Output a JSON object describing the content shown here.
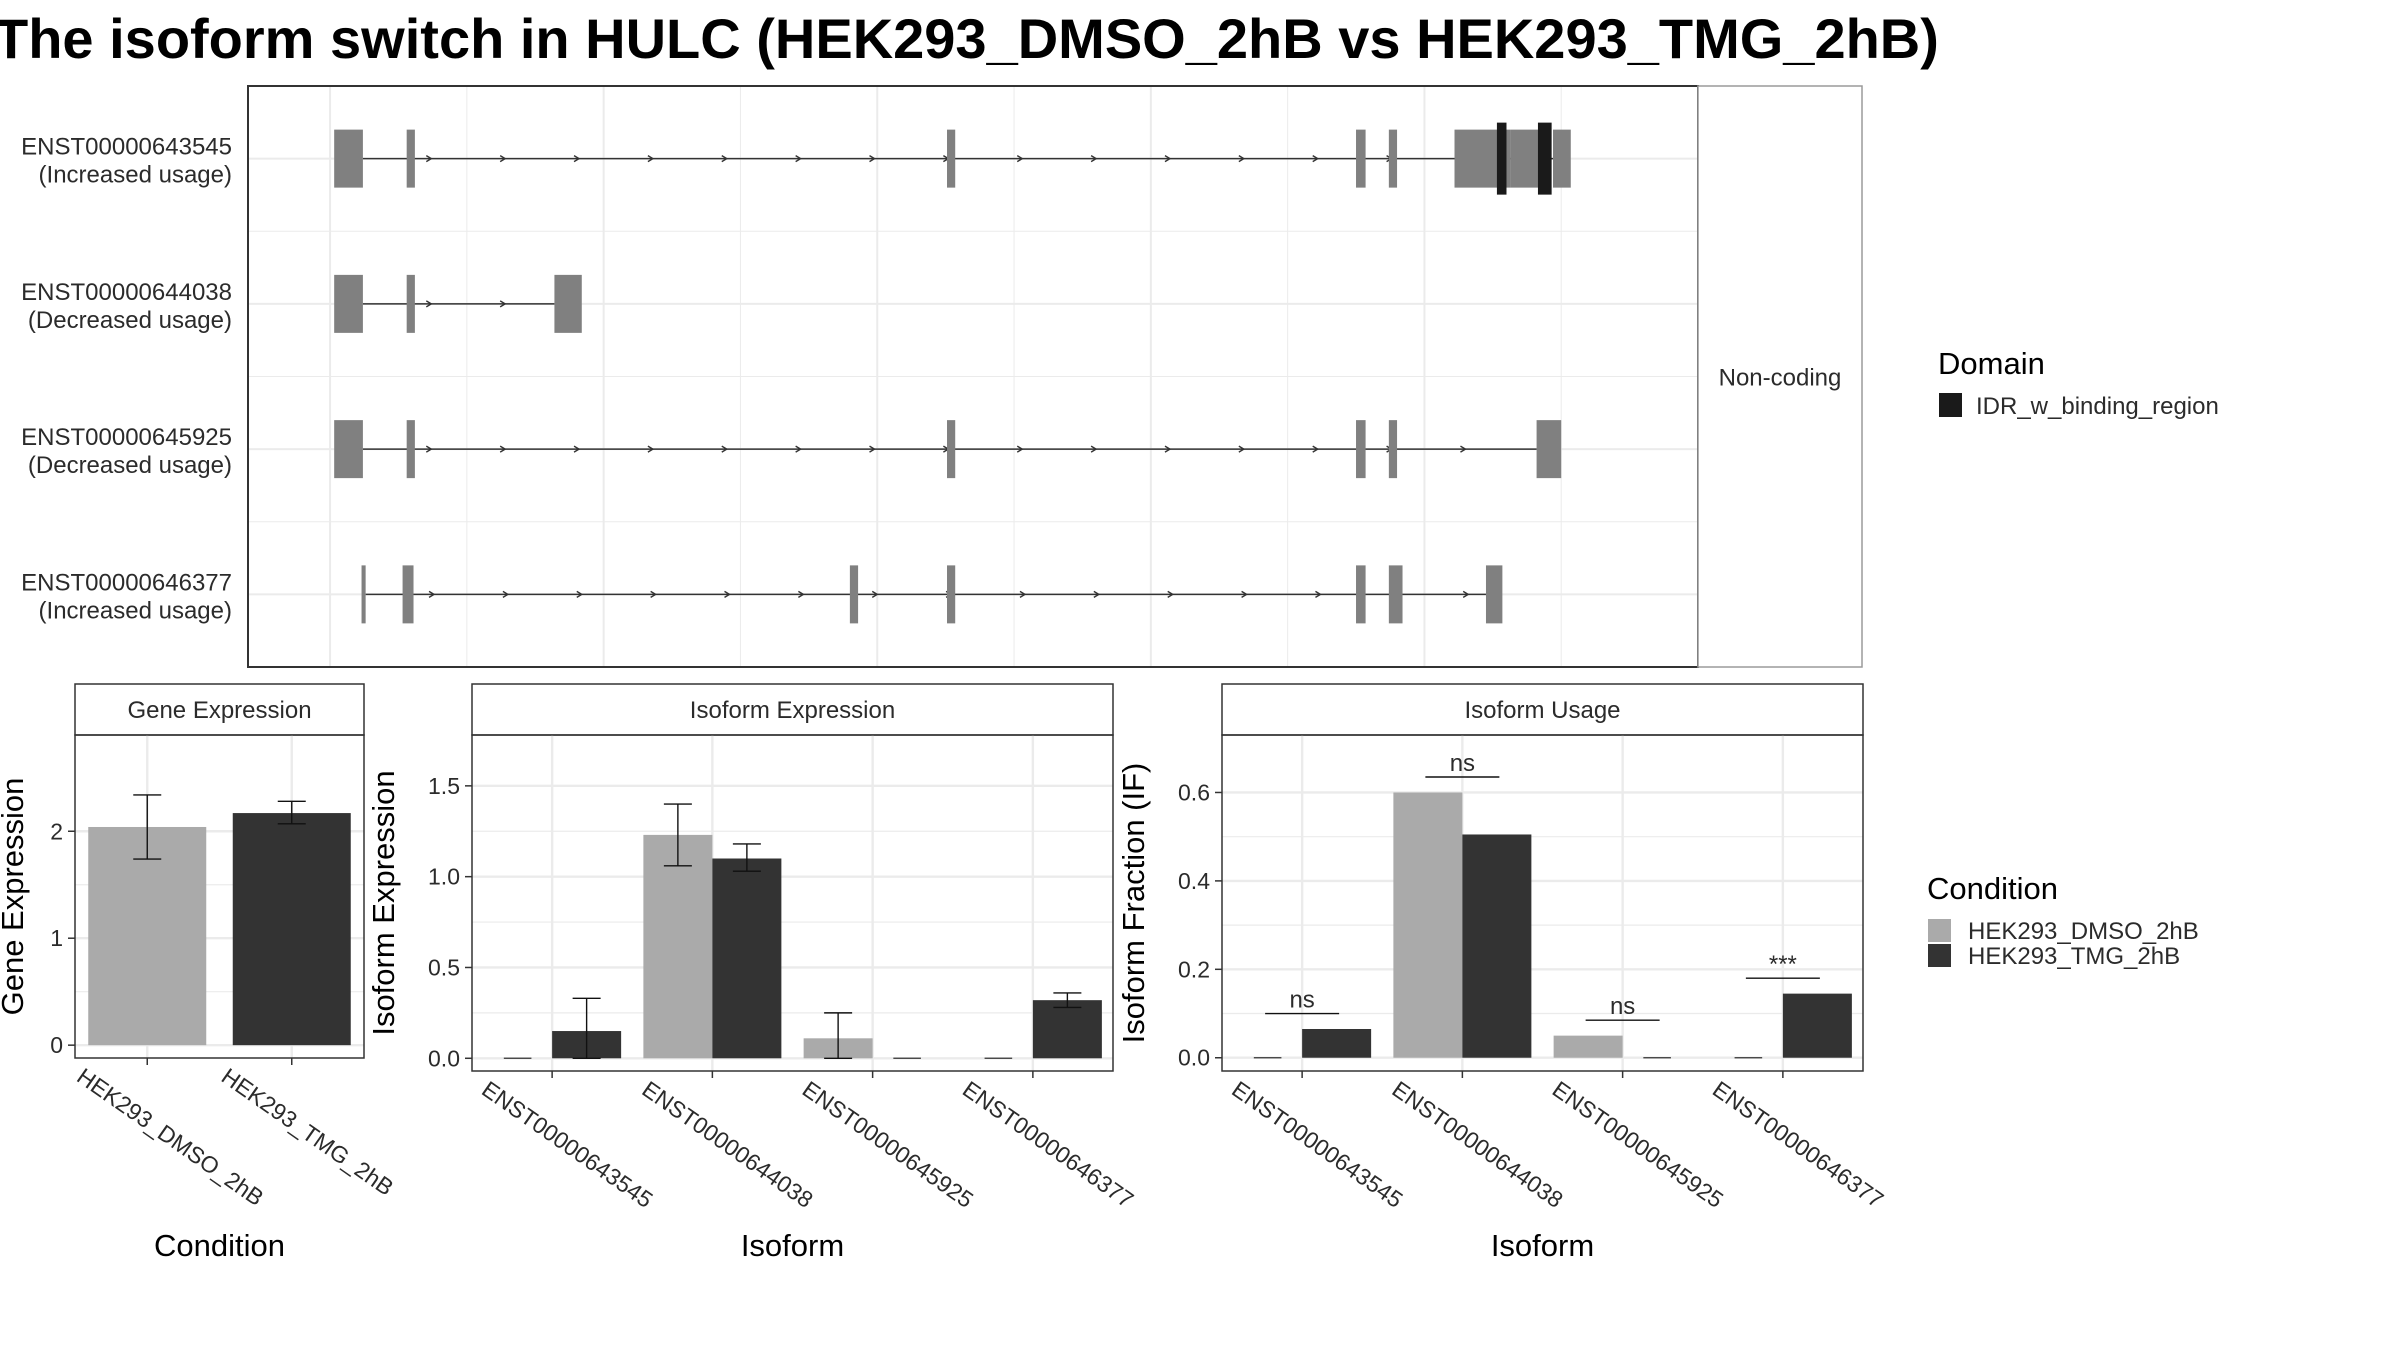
{
  "title": "The isoform switch in HULC (HEK293_DMSO_2hB vs HEK293_TMG_2hB)",
  "colors": {
    "dmso": "#aaaaaa",
    "tmg": "#333333",
    "exon": "#808080",
    "domain": "#1a1a1a",
    "panel_border": "#333333",
    "grid": "#ebebeb",
    "strip_bg": "#ffffff"
  },
  "transcripts": {
    "facet_label": "Non-coding",
    "rows": [
      {
        "id": "ENST00000643545",
        "usage": "(Increased usage)",
        "exons": [
          [
            3,
            24
          ],
          [
            56,
            62
          ],
          [
            451,
            457
          ],
          [
            750,
            757
          ],
          [
            774,
            780
          ],
          [
            822,
            863
          ],
          [
            863,
            886
          ],
          [
            894,
            907
          ]
        ],
        "domains": [
          [
            853,
            860
          ],
          [
            883,
            893
          ]
        ],
        "intron": [
          24,
          894
        ]
      },
      {
        "id": "ENST00000644038",
        "usage": "(Decreased usage)",
        "exons": [
          [
            3,
            24
          ],
          [
            56,
            62
          ],
          [
            164,
            184
          ]
        ],
        "domains": [],
        "intron": [
          24,
          164
        ]
      },
      {
        "id": "ENST00000645925",
        "usage": "(Decreased usage)",
        "exons": [
          [
            3,
            24
          ],
          [
            56,
            62
          ],
          [
            451,
            457
          ],
          [
            750,
            757
          ],
          [
            774,
            780
          ],
          [
            882,
            900
          ]
        ],
        "domains": [],
        "intron": [
          24,
          882
        ]
      },
      {
        "id": "ENST00000646377",
        "usage": "(Increased usage)",
        "exons": [
          [
            23,
            26
          ],
          [
            53,
            61
          ],
          [
            380,
            386
          ],
          [
            451,
            457
          ],
          [
            750,
            757
          ],
          [
            774,
            784
          ],
          [
            845,
            857
          ]
        ],
        "domains": [],
        "intron": [
          26,
          845
        ]
      }
    ]
  },
  "legend_domain": {
    "title": "Domain",
    "items": [
      "IDR_w_binding_region"
    ]
  },
  "legend_condition": {
    "title": "Condition",
    "items": [
      "HEK293_DMSO_2hB",
      "HEK293_TMG_2hB"
    ]
  },
  "chart_data": [
    {
      "type": "bar",
      "title": "Gene Expression",
      "xlabel": "Condition",
      "ylabel": "Gene Expression",
      "ylim": [
        -0.12,
        2.9
      ],
      "yticks": [
        0,
        1,
        2
      ],
      "categories": [
        "HEK293_DMSO_2hB",
        "HEK293_TMG_2hB"
      ],
      "values": [
        2.04,
        2.17
      ],
      "errors": [
        [
          1.74,
          2.34
        ],
        [
          2.07,
          2.28
        ]
      ]
    },
    {
      "type": "bar",
      "title": "Isoform Expression",
      "xlabel": "Isoform",
      "ylabel": "Isoform Expression",
      "ylim": [
        -0.07,
        1.78
      ],
      "yticks": [
        0.0,
        0.5,
        1.0,
        1.5
      ],
      "categories": [
        "ENST00000643545",
        "ENST00000644038",
        "ENST00000645925",
        "ENST00000646377"
      ],
      "series": [
        {
          "name": "HEK293_DMSO_2hB",
          "values": [
            0.0,
            1.23,
            0.11,
            0.0
          ],
          "errors": [
            [
              0.0,
              0.0
            ],
            [
              1.06,
              1.4
            ],
            [
              0.0,
              0.25
            ],
            [
              0.0,
              0.0
            ]
          ]
        },
        {
          "name": "HEK293_TMG_2hB",
          "values": [
            0.15,
            1.1,
            0.0,
            0.32
          ],
          "errors": [
            [
              0.0,
              0.33
            ],
            [
              1.03,
              1.18
            ],
            [
              0.0,
              0.0
            ],
            [
              0.28,
              0.36
            ]
          ]
        }
      ]
    },
    {
      "type": "bar",
      "title": "Isoform Usage",
      "xlabel": "Isoform",
      "ylabel": "Isoform Fraction (IF)",
      "ylim": [
        -0.03,
        0.73
      ],
      "yticks": [
        0.0,
        0.2,
        0.4,
        0.6
      ],
      "categories": [
        "ENST00000643545",
        "ENST00000644038",
        "ENST00000645925",
        "ENST00000646377"
      ],
      "series": [
        {
          "name": "HEK293_DMSO_2hB",
          "values": [
            0.0,
            0.6,
            0.05,
            0.0
          ]
        },
        {
          "name": "HEK293_TMG_2hB",
          "values": [
            0.065,
            0.505,
            0.0,
            0.145
          ]
        }
      ],
      "annotations": [
        {
          "category": 0,
          "text": "ns",
          "y": 0.1
        },
        {
          "category": 1,
          "text": "ns",
          "y": 0.635
        },
        {
          "category": 2,
          "text": "ns",
          "y": 0.085
        },
        {
          "category": 3,
          "text": "***",
          "y": 0.18
        }
      ]
    }
  ]
}
